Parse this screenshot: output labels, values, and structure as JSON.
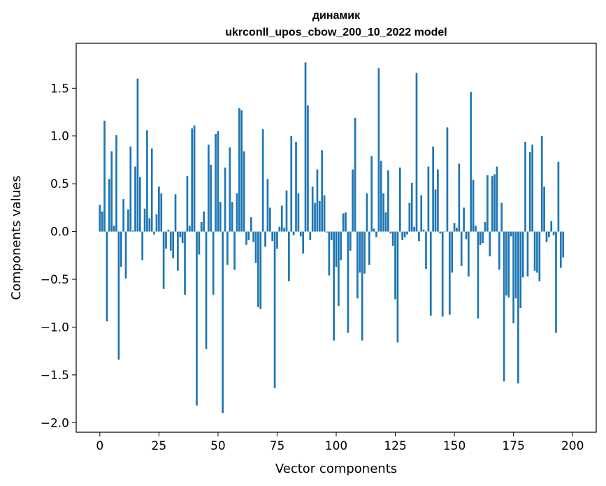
{
  "chart_data": {
    "type": "bar",
    "title": "динамик",
    "subtitle": "ukrconll_upos_cbow_200_10_2022 model",
    "xlabel": "Vector components",
    "ylabel": "Components values",
    "xlim": [
      -10,
      210
    ],
    "ylim": [
      -2.1,
      1.97
    ],
    "xticks": [
      0,
      25,
      50,
      75,
      100,
      125,
      150,
      175,
      200
    ],
    "yticks": [
      -2.0,
      -1.5,
      -1.0,
      -0.5,
      0.0,
      0.5,
      1.0,
      1.5
    ],
    "ytick_labels": [
      "−2.0",
      "−1.5",
      "−1.0",
      "−0.5",
      "0.0",
      "0.5",
      "1.0",
      "1.5"
    ],
    "grid": false,
    "legend": "none",
    "bar_color": "#1f77b4",
    "values": [
      0.28,
      0.21,
      1.16,
      -0.94,
      0.55,
      0.84,
      0.06,
      1.01,
      -1.34,
      -0.37,
      0.34,
      -0.49,
      0.23,
      0.89,
      0.01,
      0.68,
      1.6,
      0.57,
      -0.3,
      0.24,
      1.06,
      0.14,
      0.87,
      -0.03,
      0.18,
      0.47,
      0.4,
      -0.6,
      -0.18,
      0.02,
      -0.2,
      -0.28,
      0.39,
      -0.41,
      -0.06,
      -0.12,
      -0.66,
      0.58,
      0.06,
      1.08,
      1.11,
      -1.82,
      -0.24,
      0.1,
      0.21,
      -1.23,
      0.91,
      0.7,
      -0.66,
      1.02,
      1.05,
      0.31,
      -1.9,
      0.67,
      -0.35,
      0.88,
      0.31,
      -0.4,
      0.4,
      1.29,
      1.27,
      0.84,
      -0.14,
      -0.09,
      0.15,
      -0.11,
      -0.33,
      -0.79,
      -0.81,
      1.07,
      -0.16,
      0.55,
      0.25,
      -0.1,
      -1.64,
      -0.18,
      0.05,
      0.27,
      0.04,
      0.43,
      -0.52,
      1.0,
      -0.04,
      0.94,
      0.4,
      -0.05,
      -0.23,
      1.77,
      1.32,
      -0.09,
      0.47,
      0.3,
      0.65,
      0.32,
      0.85,
      0.38,
      -0.01,
      -0.46,
      -0.09,
      -1.14,
      -0.37,
      -0.78,
      -0.3,
      0.19,
      0.2,
      -1.06,
      -0.2,
      0.65,
      1.19,
      -0.7,
      -0.43,
      -1.14,
      -0.44,
      0.4,
      -0.35,
      0.79,
      0.03,
      -0.06,
      1.71,
      0.74,
      0.4,
      0.2,
      0.64,
      -0.02,
      -0.15,
      -0.71,
      -1.16,
      0.67,
      -0.09,
      -0.06,
      -0.03,
      0.3,
      0.51,
      0.05,
      1.66,
      -0.1,
      0.38,
      0.02,
      -0.39,
      0.68,
      -0.88,
      0.89,
      0.44,
      0.65,
      -0.02,
      -0.89,
      0.0,
      1.09,
      -0.87,
      -0.43,
      0.09,
      0.04,
      0.71,
      -0.36,
      0.25,
      -0.08,
      -0.47,
      1.46,
      0.54,
      0.06,
      -0.91,
      -0.14,
      -0.12,
      0.1,
      0.59,
      -0.26,
      0.58,
      0.6,
      0.68,
      -0.4,
      0.3,
      -1.57,
      -0.67,
      -0.69,
      -0.05,
      -0.96,
      -0.7,
      -1.59,
      -0.8,
      -0.48,
      0.94,
      -0.47,
      0.83,
      0.91,
      -0.41,
      -0.43,
      -0.52,
      1.0,
      0.47,
      -0.11,
      -0.06,
      0.11,
      -0.04,
      -1.06,
      0.73,
      -0.38,
      -0.27
    ]
  }
}
